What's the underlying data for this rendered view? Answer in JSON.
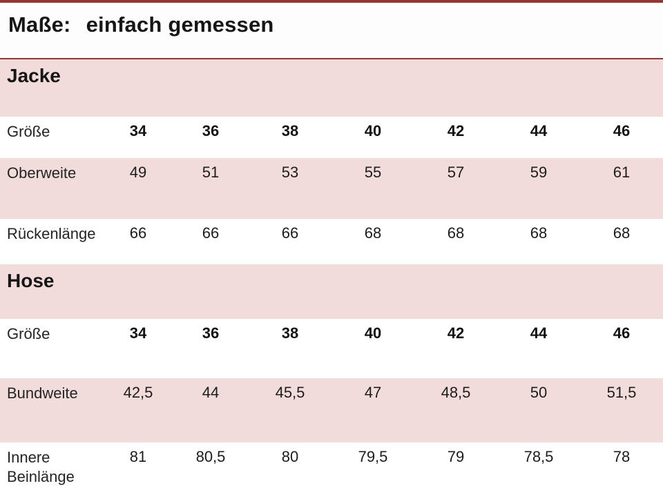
{
  "title": {
    "prefix": "Maße:",
    "rest": "einfach gemessen"
  },
  "colors": {
    "accent_line": "#943634",
    "band_pink": "#f2dcdb",
    "text": "#1f1f1f"
  },
  "jacke": {
    "heading": "Jacke",
    "groesse": {
      "label": "Größe",
      "values": [
        "34",
        "36",
        "38",
        "40",
        "42",
        "44",
        "46"
      ]
    },
    "oberweite": {
      "label": "Oberweite",
      "values": [
        "49",
        "51",
        "53",
        "55",
        "57",
        "59",
        "61"
      ]
    },
    "rueckenlaenge": {
      "label": "Rückenlänge",
      "values": [
        "66",
        "66",
        "66",
        "68",
        "68",
        "68",
        "68"
      ]
    }
  },
  "hose": {
    "heading": "Hose",
    "groesse": {
      "label": "Größe",
      "values": [
        "34",
        "36",
        "38",
        "40",
        "42",
        "44",
        "46"
      ]
    },
    "bundweite": {
      "label": "Bundweite",
      "values": [
        "42,5",
        "44",
        "45,5",
        "47",
        "48,5",
        "50",
        "51,5"
      ]
    },
    "innere_beinlaenge": {
      "label": "Innere Beinlänge",
      "values": [
        "81",
        "80,5",
        "80",
        "79,5",
        "79",
        "78,5",
        "78"
      ]
    }
  }
}
